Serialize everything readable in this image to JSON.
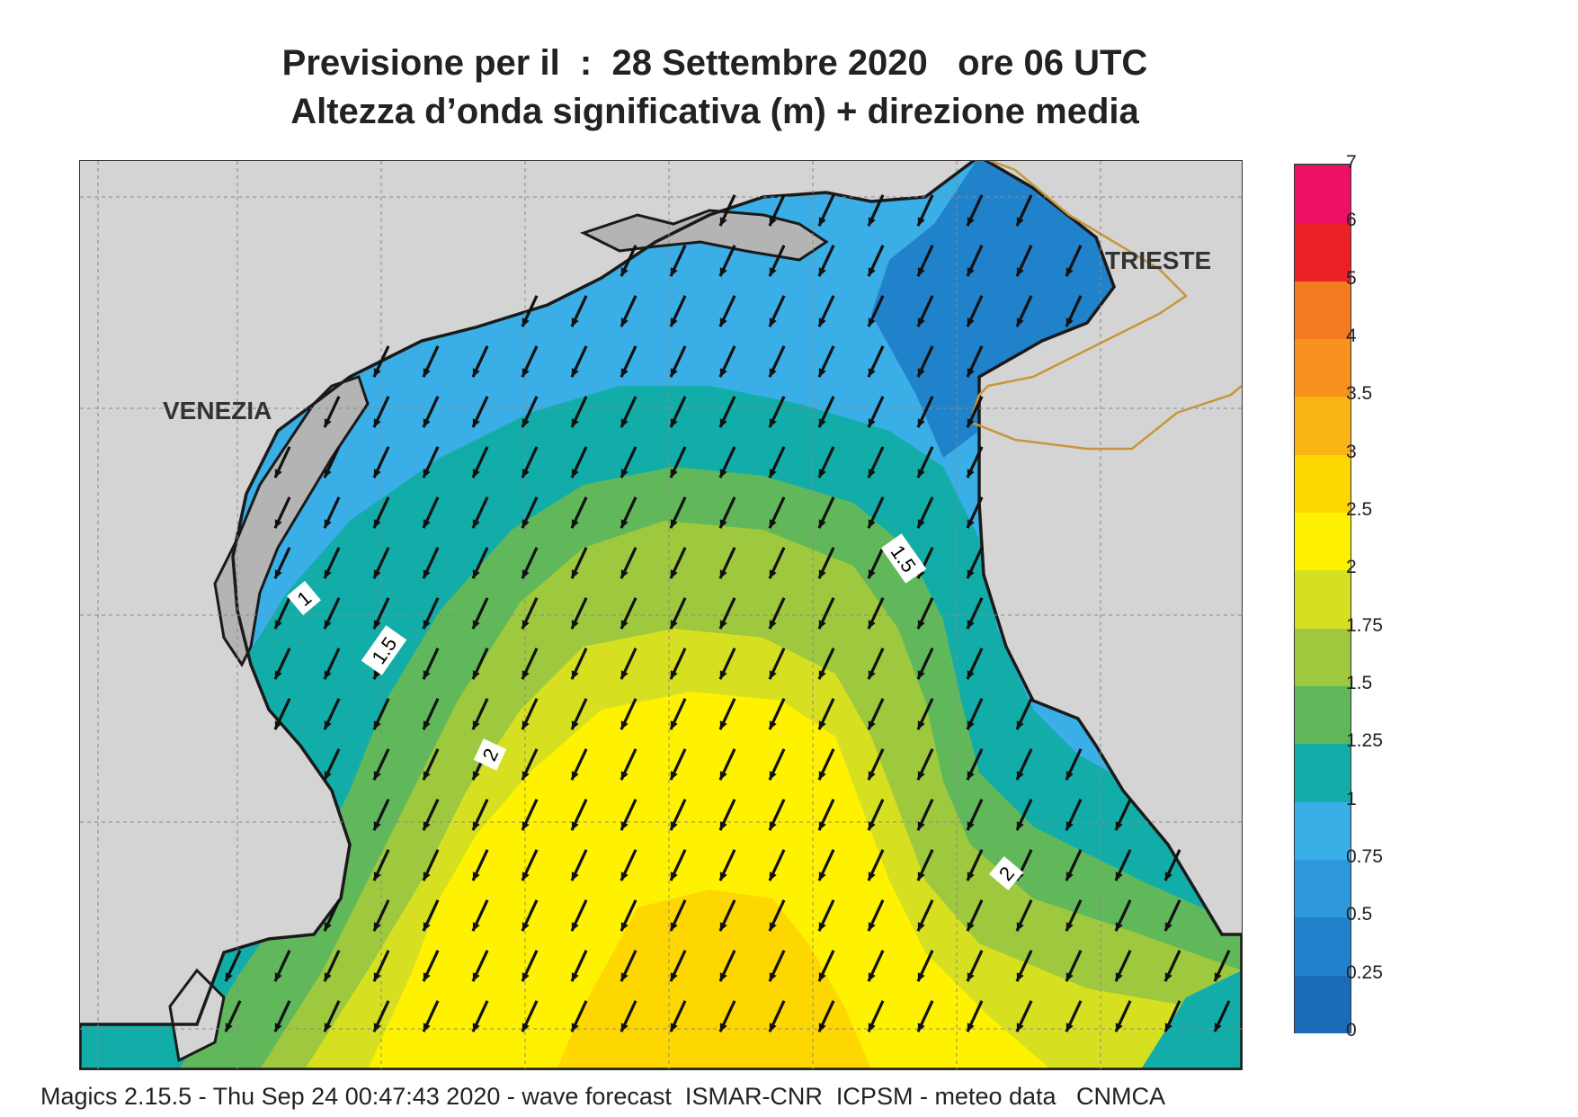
{
  "title": {
    "line1": "Previsione per il  :  28 Settembre 2020   ore 06 UTC",
    "line2": "Altezza d’onda significativa (m) + direzione media"
  },
  "map": {
    "cities": [
      {
        "name": "VENEZIA"
      },
      {
        "name": "TRIESTE"
      }
    ],
    "contour_labels": [
      "1",
      "1.5",
      "1.5",
      "2",
      "2"
    ],
    "land_color": "#d4d4d4",
    "lagoon_color": "#b4b4b4",
    "coastline_color": "#1a1a1a",
    "border_color": "#c8963a",
    "arrow_color": "#111111",
    "mean_direction": "from NE towards SW"
  },
  "colorbar": {
    "levels": [
      "0",
      "0.25",
      "0.5",
      "0.75",
      "1",
      "1.25",
      "1.5",
      "1.75",
      "2",
      "2.5",
      "3",
      "3.5",
      "4",
      "5",
      "6",
      "7"
    ],
    "colors": [
      "#1a6cb8",
      "#2182cc",
      "#2e98dc",
      "#3aaee6",
      "#12ada8",
      "#60b85a",
      "#9ec83e",
      "#d6e020",
      "#fff200",
      "#ffd700",
      "#fbb416",
      "#f7921e",
      "#f47b20",
      "#ec2127",
      "#ec1164"
    ]
  },
  "footer": {
    "text": "Magics 2.15.5 - Thu Sep 24 00:47:43 2020 - wave forecast  ISMAR-CNR  ICPSM - meteo data   CNMCA"
  }
}
